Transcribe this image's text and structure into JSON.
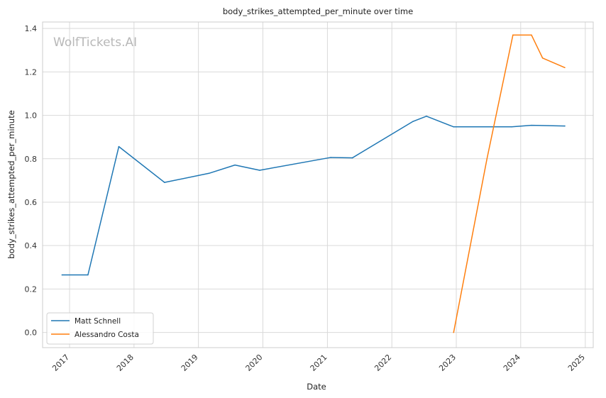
{
  "chart_data": {
    "type": "line",
    "title": "body_strikes_attempted_per_minute over time",
    "xlabel": "Date",
    "ylabel": "body_strikes_attempted_per_minute",
    "watermark": "WolfTickets.AI",
    "x_ticks": [
      "2017",
      "2018",
      "2019",
      "2020",
      "2021",
      "2022",
      "2023",
      "2024",
      "2025"
    ],
    "y_ticks": [
      "0.0",
      "0.2",
      "0.4",
      "0.6",
      "0.8",
      "1.0",
      "1.2",
      "1.4"
    ],
    "xlim": [
      "2016-08-01",
      "2025-02-15"
    ],
    "ylim": [
      -0.07,
      1.43
    ],
    "grid": true,
    "legend_position": "lower-left",
    "series": [
      {
        "name": "Matt Schnell",
        "color": "#1f77b4",
        "points": [
          [
            "2016-11-19",
            0.265
          ],
          [
            "2017-04-15",
            0.265
          ],
          [
            "2017-10-07",
            0.856
          ],
          [
            "2018-06-23",
            0.691
          ],
          [
            "2019-03-02",
            0.733
          ],
          [
            "2019-07-27",
            0.771
          ],
          [
            "2019-12-14",
            0.747
          ],
          [
            "2021-01-20",
            0.806
          ],
          [
            "2021-05-22",
            0.804
          ],
          [
            "2022-05-01",
            0.972
          ],
          [
            "2022-07-16",
            0.996
          ],
          [
            "2022-12-17",
            0.947
          ],
          [
            "2023-11-11",
            0.947
          ],
          [
            "2024-03-02",
            0.954
          ],
          [
            "2024-09-07",
            0.951
          ]
        ]
      },
      {
        "name": "Alessandro Costa",
        "color": "#ff7f0e",
        "points": [
          [
            "2022-12-17",
            0.0
          ],
          [
            "2023-06-24",
            0.8
          ],
          [
            "2023-11-18",
            1.37
          ],
          [
            "2024-03-02",
            1.37
          ],
          [
            "2024-05-04",
            1.264
          ],
          [
            "2024-09-07",
            1.22
          ]
        ]
      }
    ]
  }
}
